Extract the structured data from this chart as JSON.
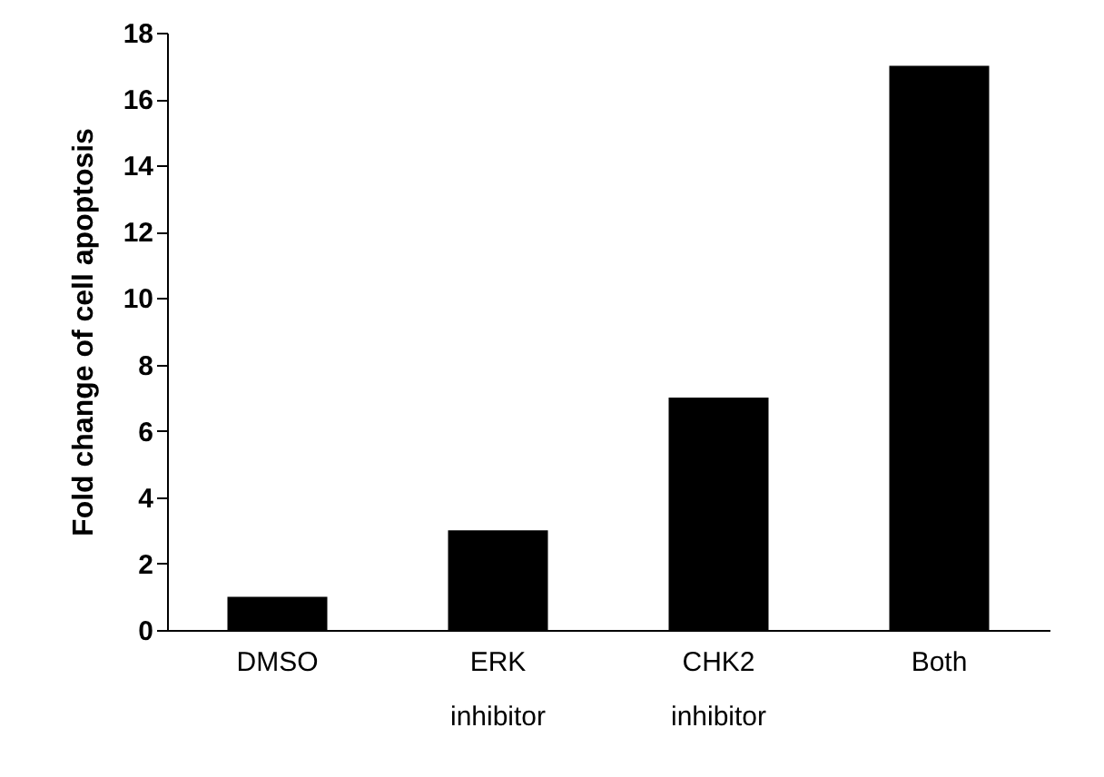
{
  "chart_data": {
    "type": "bar",
    "ylabel": "Fold change of cell apoptosis",
    "categories": [
      "DMSO",
      "ERK inhibitor",
      "CHK2 inhibitor",
      "Both"
    ],
    "values": [
      1,
      3,
      7,
      17
    ],
    "color": "#000000",
    "ylim": [
      0,
      18
    ],
    "yticks": [
      0,
      2,
      4,
      6,
      8,
      10,
      12,
      14,
      16,
      18
    ],
    "grid": false
  }
}
